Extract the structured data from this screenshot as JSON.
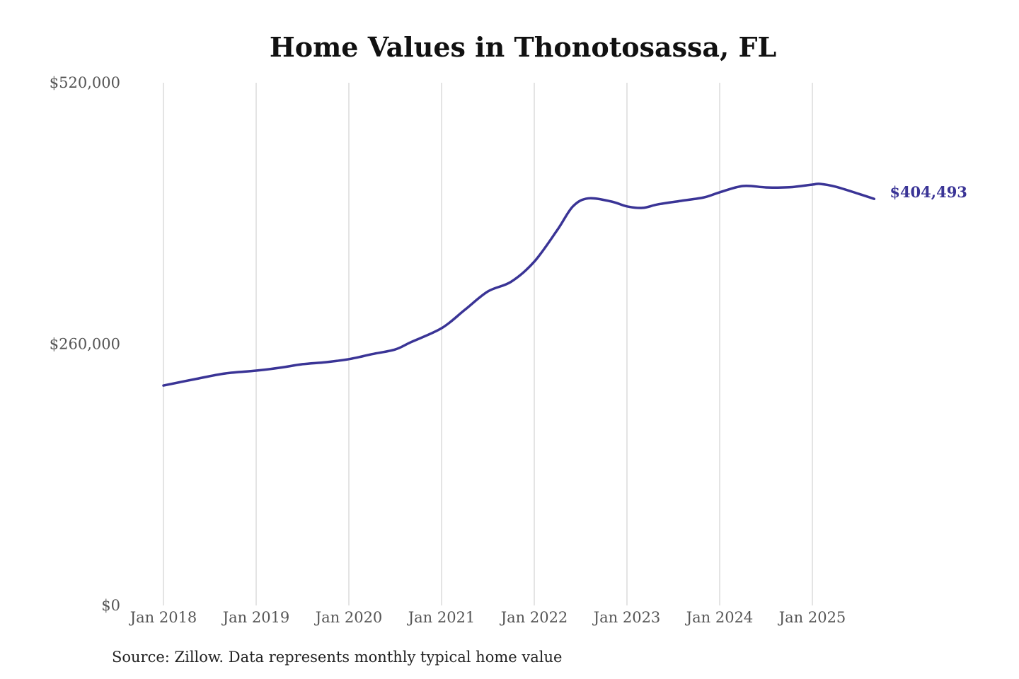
{
  "chart_data": {
    "type": "line",
    "title": "Home Values in Thonotosassa, FL",
    "xlabel": "",
    "ylabel": "",
    "ylim": [
      0,
      520000
    ],
    "y_ticks": [
      "$0",
      "$260,000",
      "$520,000"
    ],
    "y_tick_values": [
      0,
      260000,
      520000
    ],
    "x_ticks": [
      "Jan 2018",
      "Jan 2019",
      "Jan 2020",
      "Jan 2021",
      "Jan 2022",
      "Jan 2023",
      "Jan 2024",
      "Jan 2025"
    ],
    "grid": "vertical lines at x ticks",
    "line_color": "#3a3496",
    "end_label": "$404,493",
    "series": [
      {
        "x": [
          "2018-01",
          "2018-05",
          "2018-09",
          "2019-01",
          "2019-04",
          "2019-07",
          "2019-10",
          "2020-01",
          "2020-04",
          "2020-07",
          "2020-09",
          "2021-01",
          "2021-04",
          "2021-07",
          "2021-10",
          "2022-01",
          "2022-04",
          "2022-06",
          "2022-08",
          "2022-11",
          "2023-01",
          "2023-03",
          "2023-05",
          "2023-08",
          "2023-11",
          "2024-01",
          "2024-04",
          "2024-07",
          "2024-10",
          "2025-01",
          "2025-02",
          "2025-04",
          "2025-07",
          "2025-09"
        ],
        "values": [
          218800,
          225000,
          230800,
          233600,
          236400,
          240000,
          242000,
          245000,
          250000,
          254700,
          261800,
          275800,
          294000,
          312400,
          322000,
          342000,
          373700,
          397000,
          405000,
          401800,
          397000,
          395500,
          399000,
          402500,
          406000,
          411000,
          417300,
          415900,
          416000,
          418700,
          419400,
          416600,
          409500,
          404493
        ]
      }
    ]
  },
  "source": "Source: Zillow. Data represents monthly typical home value"
}
